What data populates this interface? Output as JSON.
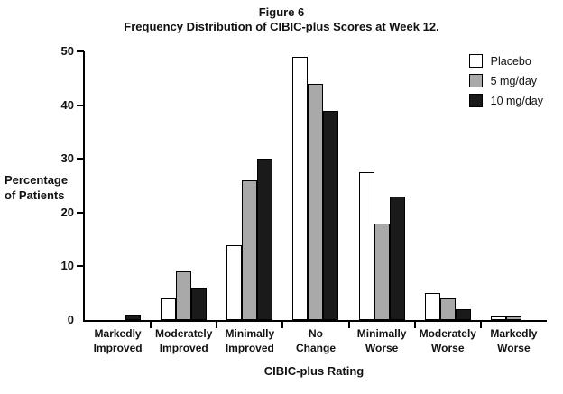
{
  "chart_data": {
    "type": "bar",
    "figure_label": "Figure 6",
    "title": "Frequency Distribution of CIBIC-plus Scores at Week 12.",
    "ylabel": "Percentage\nof Patients",
    "xlabel": "CIBIC-plus Rating",
    "categories": [
      "Markedly\nImproved",
      "Moderately\nImproved",
      "Minimally\nImproved",
      "No\nChange",
      "Minimally\nWorse",
      "Moderately\nWorse",
      "Markedly\nWorse"
    ],
    "series": [
      {
        "name": "Placebo",
        "color": "#ffffff",
        "values": [
          0,
          4,
          14,
          49,
          27.5,
          5,
          0.6
        ]
      },
      {
        "name": "5 mg/day",
        "color": "#a9a9a9",
        "values": [
          0,
          9,
          26,
          44,
          18,
          4,
          0.7
        ]
      },
      {
        "name": "10 mg/day",
        "color": "#1a1a1a",
        "values": [
          1,
          6,
          30,
          39,
          23,
          2,
          0
        ]
      }
    ],
    "ylim": [
      0,
      50
    ],
    "yticks": [
      0,
      10,
      20,
      30,
      40,
      50
    ],
    "grid": "off",
    "legend_position": "top-right-inside",
    "axis_color": "#000000"
  }
}
